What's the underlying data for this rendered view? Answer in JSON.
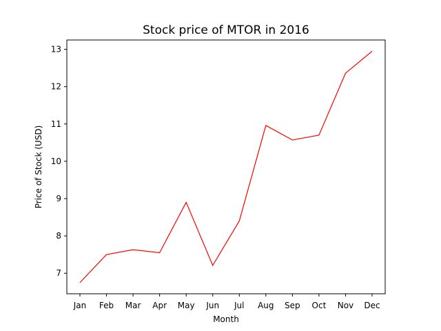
{
  "chart_data": {
    "type": "line",
    "title": "Stock price of MTOR in 2016",
    "xlabel": "Month",
    "ylabel": "Price of Stock (USD)",
    "categories": [
      "Jan",
      "Feb",
      "Mar",
      "Apr",
      "May",
      "Jun",
      "Jul",
      "Aug",
      "Sep",
      "Oct",
      "Nov",
      "Dec"
    ],
    "series": [
      {
        "values": [
          6.75,
          7.5,
          7.63,
          7.55,
          8.9,
          7.21,
          8.4,
          10.96,
          10.57,
          10.7,
          12.36,
          12.95
        ],
        "color": "#ff0000"
      }
    ],
    "yticks": [
      7,
      8,
      9,
      10,
      11,
      12,
      13
    ],
    "ylim": [
      6.45,
      13.25
    ],
    "grid": false,
    "legend": "none"
  }
}
